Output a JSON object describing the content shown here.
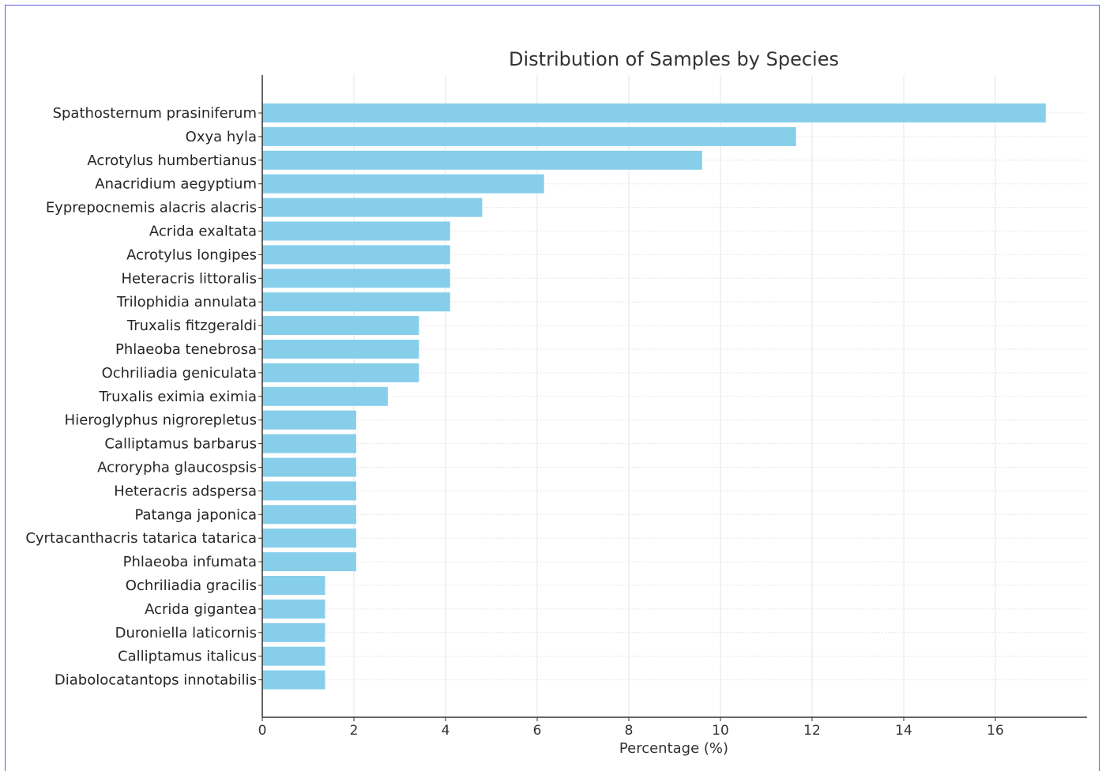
{
  "chart_data": {
    "type": "bar",
    "orientation": "horizontal",
    "title": "Distribution of Samples by Species",
    "xlabel": "Percentage (%)",
    "ylabel": "",
    "xlim": [
      0,
      18
    ],
    "xticks": [
      "0",
      "2",
      "4",
      "6",
      "8",
      "10",
      "12",
      "14",
      "16"
    ],
    "grid": true,
    "bar_color": "#87CEEB",
    "categories": [
      "Spathosternum prasiniferum",
      "Oxya hyla",
      "Acrotylus humbertianus",
      "Anacridium aegyptium",
      "Eyprepocnemis alacris alacris",
      "Acrida exaltata",
      "Acrotylus longipes",
      "Heteracris littoralis",
      "Trilophidia annulata",
      "Truxalis fitzgeraldi",
      "Phlaeoba tenebrosa",
      "Ochriliadia geniculata",
      "Truxalis eximia eximia",
      "Hieroglyphus nigrorepletus",
      "Calliptamus barbarus",
      "Acrorypha glaucospsis",
      "Heteracris adspersa",
      "Patanga japonica",
      "Cyrtacanthacris tatarica tatarica",
      "Phlaeoba infumata",
      "Ochriliadia gracilis",
      "Acrida gigantea",
      "Duroniella laticornis",
      "Calliptamus italicus",
      "Diabolocatantops innotabilis"
    ],
    "values": [
      17.1,
      11.65,
      9.6,
      6.15,
      4.8,
      4.1,
      4.1,
      4.1,
      4.1,
      3.42,
      3.42,
      3.42,
      2.74,
      2.05,
      2.05,
      2.05,
      2.05,
      2.05,
      2.05,
      2.05,
      1.37,
      1.37,
      1.37,
      1.37,
      1.37
    ]
  }
}
